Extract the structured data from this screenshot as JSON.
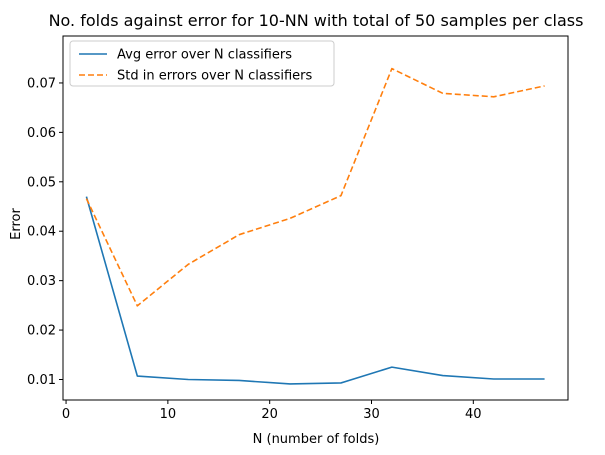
{
  "chart_data": {
    "type": "line",
    "title": "No. folds against error for 10-NN with total of 50 samples per class",
    "xlabel": "N (number of folds)",
    "ylabel": "Error",
    "x": [
      2,
      7,
      12,
      17,
      22,
      27,
      32,
      37,
      42,
      47
    ],
    "xlim": [
      -0.3,
      49.3
    ],
    "ylim": [
      0.00585,
      0.0795
    ],
    "xticks": [
      0,
      10,
      20,
      30,
      40
    ],
    "xtick_labels": [
      "0",
      "10",
      "20",
      "30",
      "40"
    ],
    "yticks": [
      0.01,
      0.02,
      0.03,
      0.04,
      0.05,
      0.06,
      0.07
    ],
    "ytick_labels": [
      "0.01",
      "0.02",
      "0.03",
      "0.04",
      "0.05",
      "0.06",
      "0.07"
    ],
    "grid": false,
    "legend_position": "top-left",
    "series": [
      {
        "name": "Avg error over N classifiers",
        "color": "#1f77b4",
        "style": "solid",
        "values": [
          0.047,
          0.0107,
          0.01,
          0.0098,
          0.0091,
          0.0093,
          0.0125,
          0.0108,
          0.0101,
          0.0101
        ]
      },
      {
        "name": "Std in errors over N classifiers",
        "color": "#ff7f0e",
        "style": "dashed",
        "values": [
          0.0466,
          0.0249,
          0.0333,
          0.0393,
          0.0426,
          0.0472,
          0.0729,
          0.0679,
          0.0672,
          0.0694
        ]
      }
    ]
  }
}
